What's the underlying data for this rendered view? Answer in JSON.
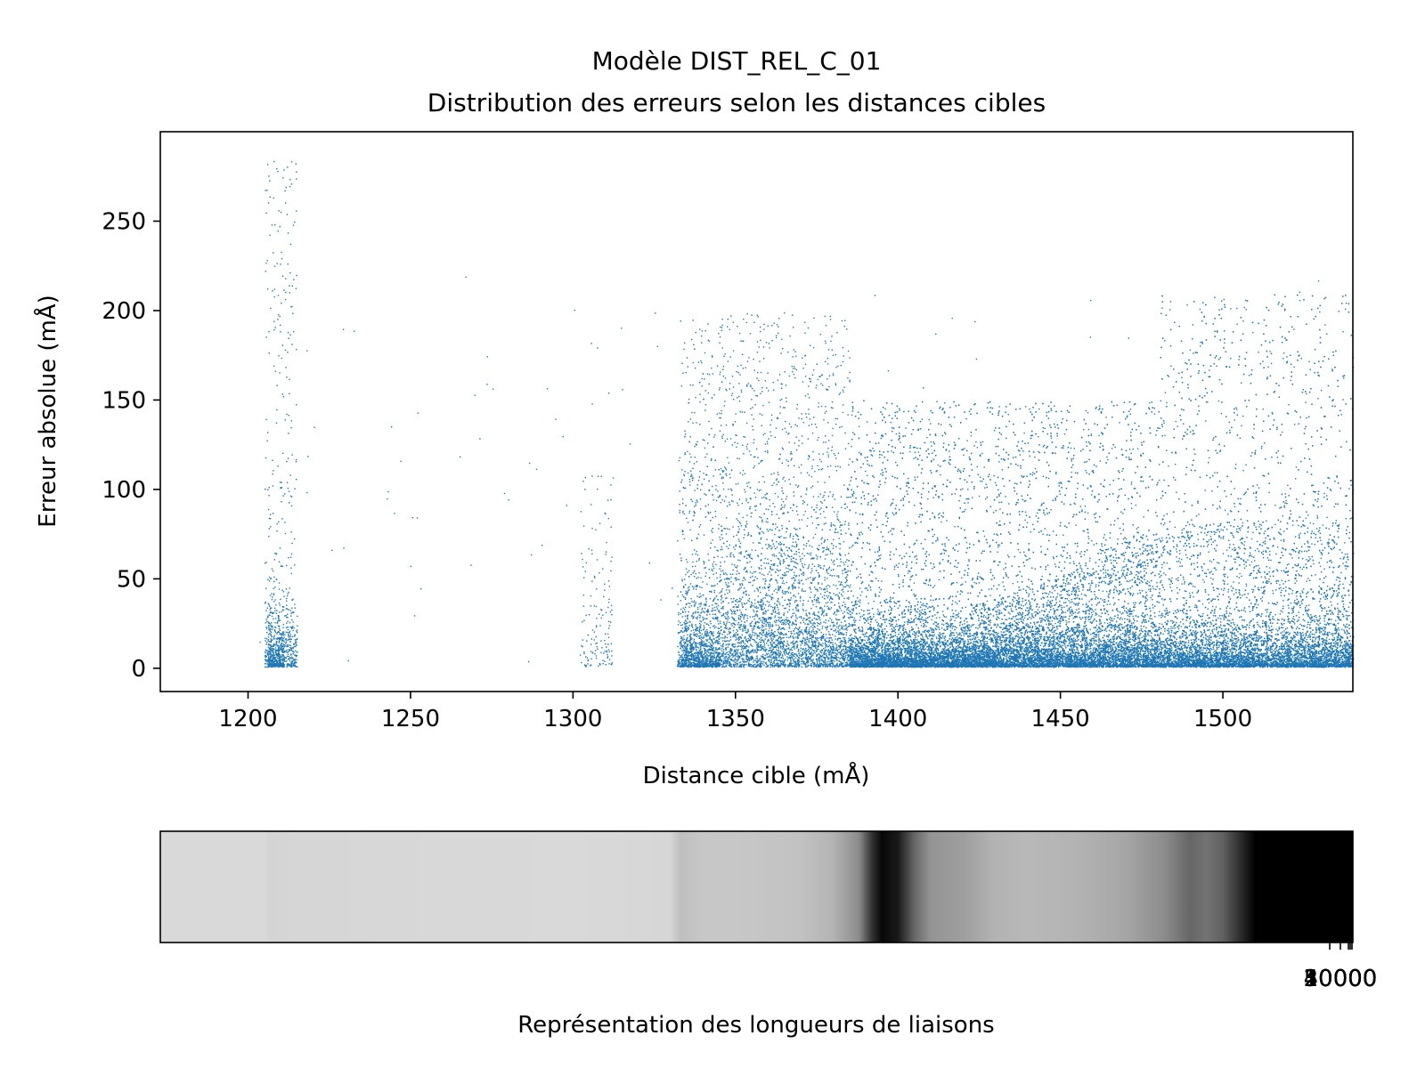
{
  "title_line1": "Modèle DIST_REL_C_01",
  "title_line2": "Distribution des erreurs selon les distances cibles",
  "chart_data": [
    {
      "type": "scatter",
      "title": "Modèle DIST_REL_C_01\nDistribution des erreurs selon les distances cibles",
      "xlabel": "Distance cible (mÅ)",
      "ylabel": "Erreur absolue (mÅ)",
      "xlim": [
        1173,
        1540
      ],
      "ylim": [
        -13,
        300
      ],
      "xticks": [
        1200,
        1250,
        1300,
        1350,
        1400,
        1450,
        1500
      ],
      "yticks": [
        0,
        50,
        100,
        150,
        200,
        250
      ],
      "grid": false,
      "marker_color": "#1f77b4",
      "clusters": [
        {
          "x_range": [
            1205,
            1215
          ],
          "y_median": 15,
          "y_max": 285,
          "density": "medium"
        },
        {
          "x_range": [
            1302,
            1312
          ],
          "y_median": 20,
          "y_max": 110,
          "density": "low"
        },
        {
          "x_range": [
            1332,
            1345
          ],
          "y_median": 10,
          "y_max": 195,
          "density": "medium"
        },
        {
          "x_range": [
            1345,
            1385
          ],
          "y_median": 25,
          "y_max": 200,
          "density": "high"
        },
        {
          "x_range": [
            1385,
            1430
          ],
          "y_median": 8,
          "y_max": 150,
          "density": "very high"
        },
        {
          "x_range": [
            1430,
            1480
          ],
          "y_median": 12,
          "y_max": 150,
          "density": "very high"
        },
        {
          "x_range": [
            1480,
            1540
          ],
          "y_median": 10,
          "y_max": 210,
          "density": "very high"
        }
      ],
      "lower_band": [
        [
          1335,
          60
        ],
        [
          1345,
          50
        ],
        [
          1360,
          35
        ],
        [
          1380,
          15
        ],
        [
          1400,
          8
        ],
        [
          1420,
          10
        ],
        [
          1440,
          25
        ],
        [
          1460,
          45
        ],
        [
          1475,
          55
        ],
        [
          1490,
          60
        ],
        [
          1510,
          50
        ],
        [
          1540,
          40
        ]
      ],
      "upper_band": [
        [
          1335,
          185
        ],
        [
          1345,
          170
        ],
        [
          1360,
          130
        ],
        [
          1380,
          90
        ],
        [
          1400,
          60
        ],
        [
          1420,
          50
        ],
        [
          1440,
          60
        ],
        [
          1460,
          70
        ],
        [
          1480,
          85
        ],
        [
          1500,
          100
        ],
        [
          1515,
          105
        ],
        [
          1540,
          110
        ]
      ]
    },
    {
      "type": "heatmap",
      "xlabel": "Représentation des longueurs de liaisons",
      "xticklabels": [
        "10000",
        "20000",
        "30000",
        "40000",
        "50000"
      ],
      "colormap": "gray_r",
      "xlim": [
        1173,
        1540
      ],
      "intensity_profile": [
        [
          1173,
          0.15
        ],
        [
          1205,
          0.15
        ],
        [
          1207,
          0.17
        ],
        [
          1215,
          0.16
        ],
        [
          1300,
          0.15
        ],
        [
          1330,
          0.16
        ],
        [
          1333,
          0.25
        ],
        [
          1340,
          0.22
        ],
        [
          1350,
          0.22
        ],
        [
          1370,
          0.24
        ],
        [
          1380,
          0.3
        ],
        [
          1388,
          0.45
        ],
        [
          1392,
          0.8
        ],
        [
          1395,
          0.97
        ],
        [
          1400,
          0.9
        ],
        [
          1405,
          0.6
        ],
        [
          1410,
          0.42
        ],
        [
          1420,
          0.38
        ],
        [
          1430,
          0.3
        ],
        [
          1440,
          0.28
        ],
        [
          1455,
          0.3
        ],
        [
          1470,
          0.35
        ],
        [
          1482,
          0.45
        ],
        [
          1490,
          0.6
        ],
        [
          1495,
          0.55
        ],
        [
          1500,
          0.62
        ],
        [
          1510,
          1.0
        ],
        [
          1540,
          1.0
        ]
      ]
    }
  ]
}
